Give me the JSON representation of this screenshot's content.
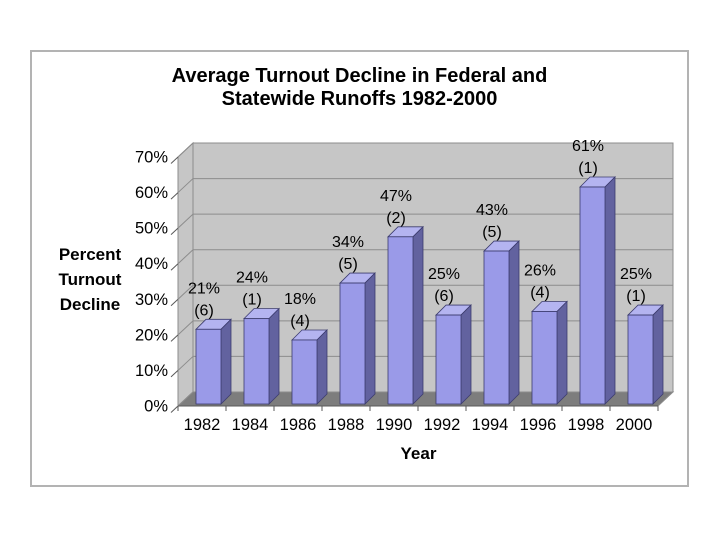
{
  "chart_frame": {
    "border_color": "#b3b3b3",
    "background": "#ffffff"
  },
  "chart_data": {
    "type": "bar",
    "style": "3d-column",
    "title": "Average Turnout Decline in Federal and Statewide Runoffs 1982-2000",
    "title_lines": [
      "Average Turnout Decline in Federal and",
      "Statewide Runoffs 1982-2000"
    ],
    "xlabel": "Year",
    "ylabel": "Percent Turnout Decline",
    "ylabel_lines": [
      "Percent",
      "Turnout",
      "Decline"
    ],
    "categories": [
      "1982",
      "1984",
      "1986",
      "1988",
      "1990",
      "1992",
      "1994",
      "1996",
      "1998",
      "2000"
    ],
    "values": [
      21,
      24,
      18,
      34,
      47,
      25,
      43,
      26,
      61,
      25
    ],
    "counts": [
      6,
      1,
      4,
      5,
      2,
      6,
      5,
      4,
      1,
      1
    ],
    "value_labels": [
      "21%",
      "24%",
      "18%",
      "34%",
      "47%",
      "25%",
      "43%",
      "26%",
      "61%",
      "25%"
    ],
    "count_labels": [
      "(6)",
      "(1)",
      "(4)",
      "(5)",
      "(2)",
      "(6)",
      "(5)",
      "(4)",
      "(1)",
      "(1)"
    ],
    "y_ticks": [
      "0%",
      "10%",
      "20%",
      "30%",
      "40%",
      "50%",
      "60%",
      "70%"
    ],
    "ylim": [
      0,
      70
    ],
    "grid": true,
    "legend": false,
    "colors": {
      "bar_front": "#9a9ae8",
      "bar_side": "#62629f",
      "bar_top": "#b4b4f0",
      "bar_outline": "#3c3c6e",
      "wall": "#c6c6c6",
      "wall_line": "#8c8c8c",
      "floor": "#7d7d7d",
      "axis_line": "#595959",
      "text": "#000000"
    }
  }
}
